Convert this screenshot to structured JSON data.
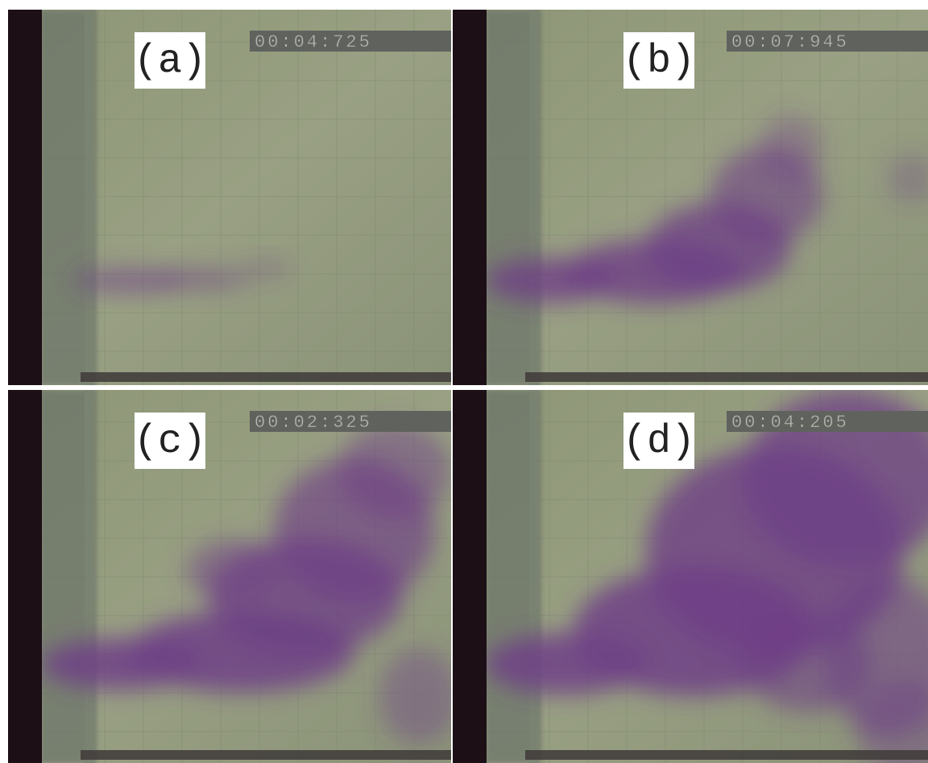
{
  "panels": [
    {
      "label": "(a)",
      "timestamp": "00:04:725"
    },
    {
      "label": "(b)",
      "timestamp": "00:07:945"
    },
    {
      "label": "(c)",
      "timestamp": "00:02:325"
    },
    {
      "label": "(d)",
      "timestamp": "00:04:205"
    }
  ]
}
